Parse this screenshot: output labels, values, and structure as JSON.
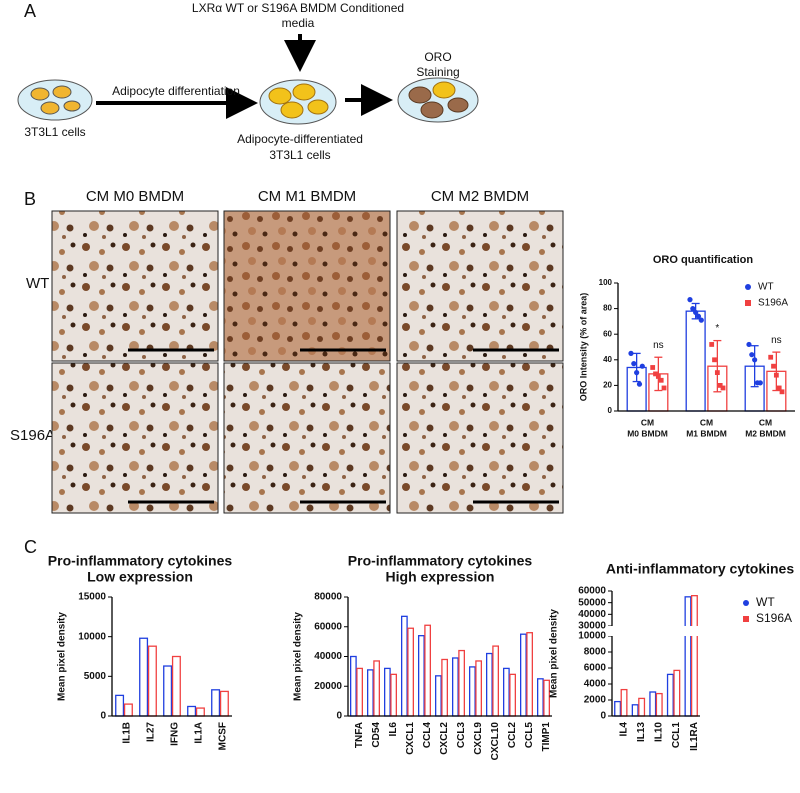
{
  "figure": {
    "labels": [
      "A",
      "B",
      "C"
    ],
    "diagram": {
      "top_label": [
        "LXRα WT or S196A BMDM Conditioned",
        "media"
      ],
      "staining": [
        "ORO",
        "Staining"
      ],
      "step": "Adipocyte differentiation",
      "start": "3T3L1 cells",
      "result": [
        "Adipocyte-differentiated",
        "3T3L1 cells"
      ]
    },
    "micrographs": {
      "columns": [
        "CM M0 BMDM",
        "CM M1 BMDM",
        "CM M2 BMDM"
      ],
      "rows": [
        "WT",
        "S196A"
      ]
    }
  },
  "chart_data": [
    {
      "type": "bar",
      "title": [
        "ORO quantification"
      ],
      "y_label": "ORO Intensity (% of area)",
      "categories": [
        [
          "CM",
          "M0 BMDM"
        ],
        [
          "CM",
          "M1 BMDM"
        ],
        [
          "CM",
          "M2 BMDM"
        ]
      ],
      "series": [
        {
          "name": "WT",
          "color": "#1f3fe0",
          "values": [
            34,
            78,
            35
          ],
          "errors": [
            11,
            6,
            16
          ],
          "points": [
            [
              45,
              37,
              30,
              21,
              35
            ],
            [
              87,
              80,
              77,
              74,
              71
            ],
            [
              52,
              44,
              40,
              22,
              22
            ]
          ]
        },
        {
          "name": "S196A",
          "color": "#f04040",
          "values": [
            29,
            35,
            31
          ],
          "errors": [
            13,
            20,
            15
          ],
          "points": [
            [
              34,
              29,
              27,
              24,
              18
            ],
            [
              52,
              40,
              30,
              20,
              18
            ],
            [
              42,
              35,
              28,
              18,
              15
            ]
          ]
        }
      ],
      "annotations": [
        "ns",
        "*",
        "ns"
      ],
      "ylim": [
        0,
        100
      ],
      "yticks": [
        0,
        20,
        40,
        60,
        80,
        100
      ],
      "legend": "upper right"
    },
    {
      "type": "bar",
      "title": [
        "Pro-inflammatory cytokines",
        "Low expression"
      ],
      "y_label": "Mean pixel density",
      "categories": [
        "IL1B",
        "IL27",
        "IFNG",
        "IL1A",
        "MCSF"
      ],
      "series": [
        {
          "name": "WT",
          "color": "#1f3fe0",
          "values": [
            2600,
            9800,
            6300,
            1200,
            3300
          ]
        },
        {
          "name": "S196A",
          "color": "#f04040",
          "values": [
            1500,
            8800,
            7500,
            1000,
            3100
          ]
        }
      ],
      "ylim": [
        0,
        15000
      ],
      "yticks": [
        0,
        5000,
        10000,
        15000
      ]
    },
    {
      "type": "bar",
      "title": [
        "Pro-inflammatory cytokines",
        "High expression"
      ],
      "y_label": "Mean pixel density",
      "categories": [
        "TNFA",
        "CD54",
        "IL6",
        "CXCL1",
        "CCL4",
        "CXCL2",
        "CCL3",
        "CXCL9",
        "CXCL10",
        "CCL2",
        "CCL5",
        "TIMP1"
      ],
      "series": [
        {
          "name": "WT",
          "color": "#1f3fe0",
          "values": [
            40000,
            31000,
            32000,
            67000,
            54000,
            27000,
            39000,
            33000,
            42000,
            32000,
            55000,
            25000
          ]
        },
        {
          "name": "S196A",
          "color": "#f04040",
          "values": [
            32000,
            37000,
            28000,
            59000,
            61000,
            38000,
            44000,
            37000,
            47000,
            28000,
            56000,
            24000
          ]
        }
      ],
      "ylim": [
        0,
        80000
      ],
      "yticks": [
        0,
        20000,
        40000,
        60000,
        80000
      ]
    },
    {
      "type": "bar",
      "title": [
        "Anti-inflammatory cytokines"
      ],
      "y_label": "Mean pixel density",
      "categories": [
        "IL4",
        "IL13",
        "IL10",
        "CCL1",
        "IL1RA"
      ],
      "series": [
        {
          "name": "WT",
          "color": "#1f3fe0",
          "values": [
            1800,
            1400,
            3000,
            5200,
            55000
          ]
        },
        {
          "name": "S196A",
          "color": "#f04040",
          "values": [
            3300,
            2200,
            2800,
            5700,
            56000
          ]
        }
      ],
      "ylim": [
        0,
        60000
      ],
      "axis_break": [
        10000,
        30000
      ],
      "yticks": [
        0,
        2000,
        4000,
        6000,
        8000,
        10000,
        30000,
        40000,
        50000,
        60000
      ],
      "legend": "upper right"
    }
  ]
}
